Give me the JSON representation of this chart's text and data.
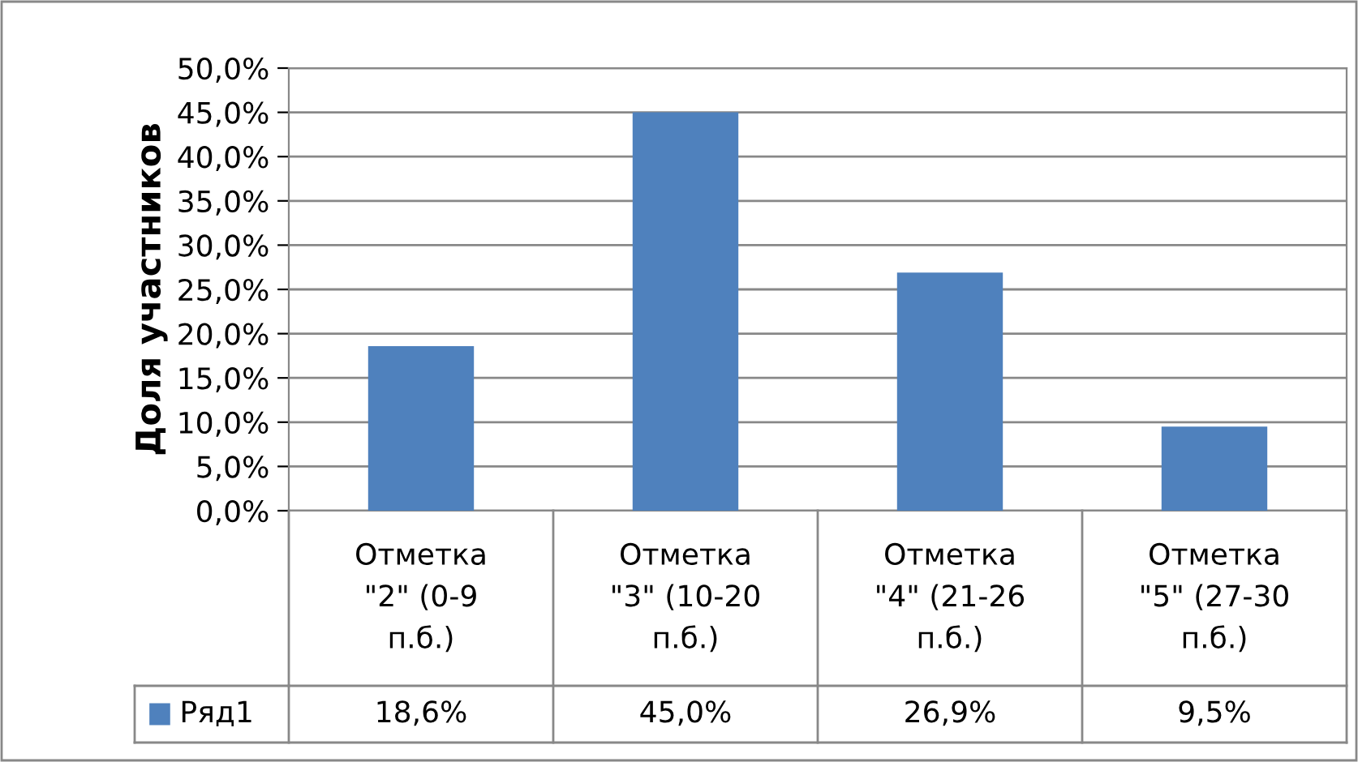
{
  "chart_data": {
    "type": "bar",
    "ylabel": "Доля участников",
    "categories": [
      "Отметка\n\"2\" (0-9\nп.б.)",
      "Отметка\n\"3\" (10-20\nп.б.)",
      "Отметка\n\"4\" (21-26\nп.б.)",
      "Отметка\n\"5\" (27-30\nп.б.)"
    ],
    "series": [
      {
        "name": "Ряд1",
        "color": "#4f81bd",
        "values": [
          18.6,
          45.0,
          26.9,
          9.5
        ],
        "value_labels": [
          "18,6%",
          "45,0%",
          "26,9%",
          "9,5%"
        ]
      }
    ],
    "ylim": [
      0,
      50
    ],
    "yticks": [
      {
        "value": 0,
        "label": "0,0%"
      },
      {
        "value": 5,
        "label": "5,0%"
      },
      {
        "value": 10,
        "label": "10,0%"
      },
      {
        "value": 15,
        "label": "15,0%"
      },
      {
        "value": 20,
        "label": "20,0%"
      },
      {
        "value": 25,
        "label": "25,0%"
      },
      {
        "value": 30,
        "label": "30,0%"
      },
      {
        "value": 35,
        "label": "35,0%"
      },
      {
        "value": 40,
        "label": "40,0%"
      },
      {
        "value": 45,
        "label": "45,0%"
      },
      {
        "value": 50,
        "label": "50,0%"
      }
    ],
    "grid": "y",
    "legend": "bottom"
  }
}
